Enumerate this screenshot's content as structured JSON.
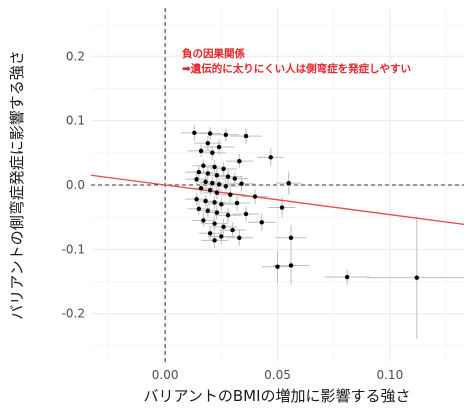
{
  "chart_data": {
    "type": "scatter",
    "xlabel": "バリアントのBMIの増加に影響する強さ",
    "ylabel": "バリアントの側弯症発症に影響する強さ",
    "xlim": [
      -0.033,
      0.133
    ],
    "ylim": [
      -0.275,
      0.275
    ],
    "x_ticks": [
      0.0,
      0.05,
      0.1
    ],
    "x_tick_labels": [
      "0.00",
      "0.05",
      "0.10"
    ],
    "y_ticks": [
      -0.2,
      -0.1,
      0.0,
      0.1,
      0.2
    ],
    "y_tick_labels": [
      "-0.2",
      "-0.1",
      "0.0",
      "0.1",
      "0.2"
    ],
    "grid": true,
    "reference_lines": {
      "x": 0,
      "y": 0,
      "style": "dashed"
    },
    "fit_line": {
      "intercept": 0.0,
      "slope": -0.46,
      "color": "#e8474c"
    },
    "annotation": {
      "line1": "負の因果関係",
      "line2": "➡遺伝的に太りにくい人は側弯症を発症しやすい",
      "color": "#e8232a"
    },
    "points": [
      {
        "x": 0.013,
        "y": 0.081,
        "xerr": 0.006,
        "yerr": 0.012
      },
      {
        "x": 0.02,
        "y": 0.08,
        "xerr": 0.005,
        "yerr": 0.01
      },
      {
        "x": 0.027,
        "y": 0.078,
        "xerr": 0.006,
        "yerr": 0.01
      },
      {
        "x": 0.036,
        "y": 0.076,
        "xerr": 0.007,
        "yerr": 0.012
      },
      {
        "x": 0.019,
        "y": 0.065,
        "xerr": 0.006,
        "yerr": 0.011
      },
      {
        "x": 0.024,
        "y": 0.059,
        "xerr": 0.007,
        "yerr": 0.012
      },
      {
        "x": 0.016,
        "y": 0.053,
        "xerr": 0.006,
        "yerr": 0.01
      },
      {
        "x": 0.021,
        "y": 0.05,
        "xerr": 0.006,
        "yerr": 0.011
      },
      {
        "x": 0.047,
        "y": 0.043,
        "xerr": 0.006,
        "yerr": 0.014
      },
      {
        "x": 0.033,
        "y": 0.037,
        "xerr": 0.006,
        "yerr": 0.011
      },
      {
        "x": 0.017,
        "y": 0.03,
        "xerr": 0.005,
        "yerr": 0.01
      },
      {
        "x": 0.022,
        "y": 0.028,
        "xerr": 0.005,
        "yerr": 0.011
      },
      {
        "x": 0.026,
        "y": 0.025,
        "xerr": 0.006,
        "yerr": 0.01
      },
      {
        "x": 0.015,
        "y": 0.02,
        "xerr": 0.006,
        "yerr": 0.01
      },
      {
        "x": 0.019,
        "y": 0.018,
        "xerr": 0.005,
        "yerr": 0.009
      },
      {
        "x": 0.023,
        "y": 0.015,
        "xerr": 0.005,
        "yerr": 0.01
      },
      {
        "x": 0.028,
        "y": 0.013,
        "xerr": 0.006,
        "yerr": 0.011
      },
      {
        "x": 0.031,
        "y": 0.01,
        "xerr": 0.006,
        "yerr": 0.01
      },
      {
        "x": 0.014,
        "y": 0.009,
        "xerr": 0.005,
        "yerr": 0.01
      },
      {
        "x": 0.018,
        "y": 0.005,
        "xerr": 0.005,
        "yerr": 0.009
      },
      {
        "x": 0.021,
        "y": 0.003,
        "xerr": 0.005,
        "yerr": 0.01
      },
      {
        "x": 0.024,
        "y": 0.001,
        "xerr": 0.006,
        "yerr": 0.01
      },
      {
        "x": 0.027,
        "y": -0.002,
        "xerr": 0.005,
        "yerr": 0.011
      },
      {
        "x": 0.034,
        "y": 0.002,
        "xerr": 0.006,
        "yerr": 0.012
      },
      {
        "x": 0.055,
        "y": 0.003,
        "xerr": 0.006,
        "yerr": 0.018
      },
      {
        "x": 0.016,
        "y": -0.005,
        "xerr": 0.005,
        "yerr": 0.01
      },
      {
        "x": 0.02,
        "y": -0.008,
        "xerr": 0.005,
        "yerr": 0.009
      },
      {
        "x": 0.023,
        "y": -0.012,
        "xerr": 0.006,
        "yerr": 0.01
      },
      {
        "x": 0.029,
        "y": -0.015,
        "xerr": 0.006,
        "yerr": 0.011
      },
      {
        "x": 0.04,
        "y": -0.018,
        "xerr": 0.006,
        "yerr": 0.012
      },
      {
        "x": 0.014,
        "y": -0.022,
        "xerr": 0.005,
        "yerr": 0.01
      },
      {
        "x": 0.018,
        "y": -0.025,
        "xerr": 0.005,
        "yerr": 0.01
      },
      {
        "x": 0.022,
        "y": -0.027,
        "xerr": 0.005,
        "yerr": 0.011
      },
      {
        "x": 0.025,
        "y": -0.03,
        "xerr": 0.006,
        "yerr": 0.01
      },
      {
        "x": 0.032,
        "y": -0.028,
        "xerr": 0.006,
        "yerr": 0.012
      },
      {
        "x": 0.052,
        "y": -0.035,
        "xerr": 0.006,
        "yerr": 0.016
      },
      {
        "x": 0.015,
        "y": -0.037,
        "xerr": 0.005,
        "yerr": 0.01
      },
      {
        "x": 0.019,
        "y": -0.04,
        "xerr": 0.005,
        "yerr": 0.01
      },
      {
        "x": 0.023,
        "y": -0.043,
        "xerr": 0.006,
        "yerr": 0.011
      },
      {
        "x": 0.028,
        "y": -0.047,
        "xerr": 0.006,
        "yerr": 0.012
      },
      {
        "x": 0.036,
        "y": -0.045,
        "xerr": 0.006,
        "yerr": 0.012
      },
      {
        "x": 0.017,
        "y": -0.055,
        "xerr": 0.005,
        "yerr": 0.01
      },
      {
        "x": 0.022,
        "y": -0.06,
        "xerr": 0.006,
        "yerr": 0.011
      },
      {
        "x": 0.043,
        "y": -0.058,
        "xerr": 0.006,
        "yerr": 0.013
      },
      {
        "x": 0.026,
        "y": -0.065,
        "xerr": 0.006,
        "yerr": 0.012
      },
      {
        "x": 0.03,
        "y": -0.07,
        "xerr": 0.006,
        "yerr": 0.012
      },
      {
        "x": 0.02,
        "y": -0.075,
        "xerr": 0.005,
        "yerr": 0.011
      },
      {
        "x": 0.025,
        "y": -0.08,
        "xerr": 0.006,
        "yerr": 0.012
      },
      {
        "x": 0.033,
        "y": -0.082,
        "xerr": 0.006,
        "yerr": 0.013
      },
      {
        "x": 0.056,
        "y": -0.082,
        "xerr": 0.007,
        "yerr": 0.02
      },
      {
        "x": 0.022,
        "y": -0.086,
        "xerr": 0.006,
        "yerr": 0.012
      },
      {
        "x": 0.05,
        "y": -0.127,
        "xerr": 0.007,
        "yerr": 0.025
      },
      {
        "x": 0.056,
        "y": -0.125,
        "xerr": 0.008,
        "yerr": 0.03
      },
      {
        "x": 0.081,
        "y": -0.143,
        "xerr": 0.01,
        "yerr": 0.012
      },
      {
        "x": 0.112,
        "y": -0.144,
        "xerr": 0.022,
        "yerr": 0.095
      }
    ]
  }
}
